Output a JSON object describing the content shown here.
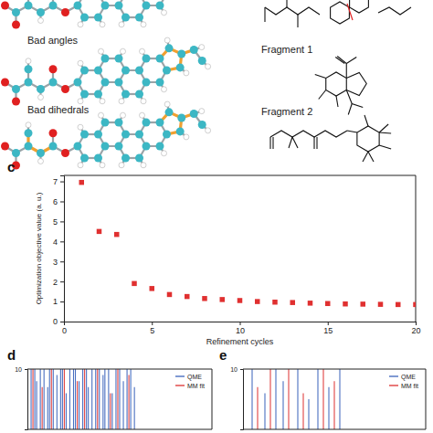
{
  "figure": {
    "molecule_labels": [
      "Bad angles",
      "Bad dihedrals"
    ],
    "fragment_labels": [
      "Fragment 1",
      "Fragment 2"
    ]
  },
  "chart_data": [
    {
      "type": "scatter",
      "label": "c",
      "x": [
        1,
        2,
        3,
        4,
        5,
        6,
        7,
        8,
        9,
        10,
        11,
        12,
        13,
        14,
        15,
        16,
        17,
        18,
        19,
        20
      ],
      "values": [
        6.95,
        4.5,
        4.35,
        1.9,
        1.65,
        1.35,
        1.25,
        1.15,
        1.1,
        1.05,
        1.0,
        0.97,
        0.95,
        0.92,
        0.9,
        0.88,
        0.87,
        0.86,
        0.85,
        0.85
      ],
      "xlabel": "Refinement cycles",
      "ylabel": "Optimization objective value (a. u.)",
      "xlim": [
        0,
        20
      ],
      "ylim": [
        0,
        7.3
      ],
      "xticks": [
        0,
        5,
        10,
        15,
        20
      ],
      "yticks": [
        0,
        1,
        2,
        3,
        4,
        5,
        6,
        7
      ],
      "color": "#e03030",
      "marker": "square"
    },
    {
      "type": "bar",
      "label": "d",
      "xlim": [
        0,
        100
      ],
      "ylim": [
        9,
        10
      ],
      "yticks": [
        10
      ],
      "tick_labels": "y",
      "legend": "upper right",
      "series": [
        {
          "name": "QME",
          "color": "#4a6fc0",
          "x": [
            2,
            4,
            5,
            7,
            9,
            11,
            12,
            14,
            16,
            18,
            19,
            21,
            23,
            25,
            26,
            28,
            30,
            32,
            33,
            35,
            37,
            39,
            41,
            42,
            44,
            46,
            48,
            50,
            52,
            54,
            56,
            58
          ],
          "values": [
            10,
            10,
            9.8,
            10,
            10,
            9.7,
            10,
            10,
            9.9,
            10,
            10,
            9.6,
            10,
            10,
            10,
            9.8,
            10,
            10,
            9.7,
            10,
            10,
            10,
            9.9,
            10,
            10,
            9.6,
            10,
            10,
            9.8,
            10,
            10,
            9.7
          ]
        },
        {
          "name": "MM fit",
          "color": "#e04040",
          "x": [
            3,
            8,
            13,
            20,
            27,
            31,
            38,
            45,
            49,
            55
          ],
          "values": [
            10,
            9.7,
            10,
            10,
            9.8,
            10,
            10,
            9.6,
            10,
            9.9
          ]
        }
      ]
    },
    {
      "type": "bar",
      "label": "e",
      "xlim": [
        0,
        100
      ],
      "ylim": [
        9,
        10
      ],
      "yticks": [
        10
      ],
      "tick_labels": "y",
      "legend": "upper right",
      "series": [
        {
          "name": "QME",
          "color": "#4a6fc0",
          "x": [
            5,
            12,
            18,
            22,
            30,
            36,
            41,
            47,
            53
          ],
          "values": [
            10,
            9.6,
            10,
            9.8,
            10,
            9.5,
            10,
            9.7,
            10
          ]
        },
        {
          "name": "MM fit",
          "color": "#e04040",
          "x": [
            8,
            15,
            25,
            33,
            44,
            50
          ],
          "values": [
            9.7,
            10,
            10,
            9.6,
            10,
            9.8
          ]
        }
      ]
    }
  ]
}
